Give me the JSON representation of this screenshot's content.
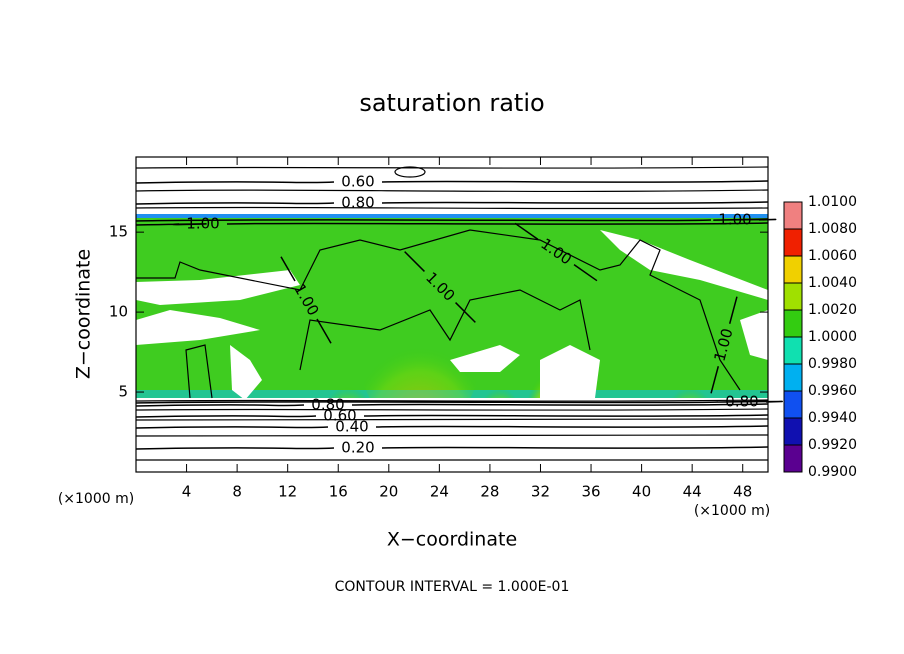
{
  "chart_data": {
    "type": "contour",
    "title": "saturation ratio",
    "x_label": "X−coordinate",
    "y_label": "Z−coordinate",
    "x_unit_label": "(×1000 m)",
    "y_unit_label": "(×1000 m)",
    "footer": "CONTOUR INTERVAL = 1.000E-01",
    "xlim": [
      0,
      50
    ],
    "ylim": [
      0,
      19.7
    ],
    "xticks": [
      4,
      8,
      12,
      16,
      20,
      24,
      28,
      32,
      36,
      40,
      44,
      48
    ],
    "yticks": [
      5,
      10,
      15
    ],
    "contour_labels": [
      {
        "value": 0.6,
        "label": "0.60"
      },
      {
        "value": 0.8,
        "label": "0.80"
      },
      {
        "value": 1.0,
        "label": "1.00"
      },
      {
        "value": 1.0,
        "label": "1.00"
      },
      {
        "value": 1.0,
        "label": "1.00"
      },
      {
        "value": 1.0,
        "label": "1.00"
      },
      {
        "value": 1.0,
        "label": "1.00"
      },
      {
        "value": 1.0,
        "label": "1.00"
      },
      {
        "value": 0.8,
        "label": "0.80"
      },
      {
        "value": 0.6,
        "label": "0.60"
      },
      {
        "value": 0.4,
        "label": "0.40"
      },
      {
        "value": 0.2,
        "label": "0.20"
      },
      {
        "value": 0.8,
        "label": "0.80"
      }
    ],
    "colorbar": {
      "ticks": [
        {
          "value": 0.99,
          "label": "0.9900"
        },
        {
          "value": 0.992,
          "label": "0.9920"
        },
        {
          "value": 0.994,
          "label": "0.9940"
        },
        {
          "value": 0.996,
          "label": "0.9960"
        },
        {
          "value": 0.998,
          "label": "0.9980"
        },
        {
          "value": 1.0,
          "label": "1.0000"
        },
        {
          "value": 1.002,
          "label": "1.0020"
        },
        {
          "value": 1.004,
          "label": "1.0040"
        },
        {
          "value": 1.006,
          "label": "1.0060"
        },
        {
          "value": 1.008,
          "label": "1.0080"
        },
        {
          "value": 1.01,
          "label": "1.0100"
        }
      ],
      "colors": [
        "#5a0090",
        "#1010b0",
        "#1050f0",
        "#00b0f0",
        "#10e0b0",
        "#33cc11",
        "#a0e000",
        "#f0d000",
        "#f02000",
        "#f08080"
      ]
    }
  }
}
